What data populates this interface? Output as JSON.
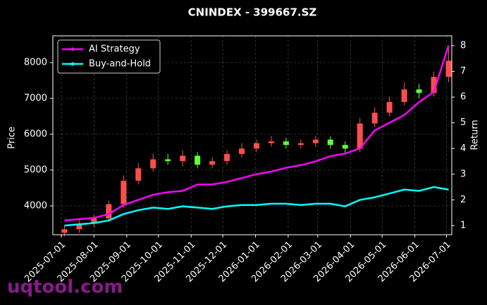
{
  "chart_data": {
    "type": "candlestick",
    "title": "CNINDEX - 399667.SZ",
    "ylabel": "Price",
    "y2label": "Return",
    "watermark": "uqtool.com",
    "x": [
      "2025-07-04",
      "2025-07-18",
      "2025-08-01",
      "2025-08-15",
      "2025-08-29",
      "2025-09-12",
      "2025-09-26",
      "2025-10-10",
      "2025-10-24",
      "2025-11-07",
      "2025-11-21",
      "2025-12-05",
      "2025-12-19",
      "2026-01-02",
      "2026-01-16",
      "2026-01-30",
      "2026-02-13",
      "2026-02-27",
      "2026-03-13",
      "2026-03-27",
      "2026-04-10",
      "2026-04-24",
      "2026-05-08",
      "2026-05-22",
      "2026-06-05",
      "2026-06-19",
      "2026-07-03"
    ],
    "ohlc": {
      "open": [
        3250,
        3350,
        3500,
        3650,
        4050,
        4700,
        5050,
        5300,
        5250,
        5400,
        5150,
        5250,
        5450,
        5600,
        5750,
        5800,
        5700,
        5750,
        5850,
        5700,
        5600,
        6300,
        6600,
        6900,
        7250,
        7150,
        7600
      ],
      "high": [
        3450,
        3600,
        3750,
        4150,
        4850,
        5200,
        5450,
        5450,
        5550,
        5500,
        5350,
        5550,
        5750,
        5850,
        5950,
        5900,
        5850,
        5950,
        5950,
        5800,
        6450,
        6750,
        7050,
        7450,
        7400,
        7750,
        8400
      ],
      "low": [
        3150,
        3250,
        3400,
        3550,
        3950,
        4600,
        4950,
        5150,
        5100,
        5050,
        5050,
        5150,
        5350,
        5500,
        5650,
        5600,
        5600,
        5650,
        5600,
        5450,
        5500,
        6200,
        6500,
        6800,
        7000,
        7050,
        7450
      ],
      "close": [
        3350,
        3500,
        3650,
        4050,
        4700,
        5050,
        5300,
        5250,
        5400,
        5150,
        5250,
        5450,
        5600,
        5750,
        5800,
        5700,
        5750,
        5850,
        5700,
        5600,
        6300,
        6600,
        6900,
        7250,
        7150,
        7600,
        8050
      ]
    },
    "up_color": "#ff4d4d",
    "down_color": "#66ff33",
    "series": [
      {
        "name": "AI Strategy",
        "color": "#ff00ff",
        "axis": "y2",
        "values": [
          1.2,
          1.25,
          1.3,
          1.45,
          1.8,
          2.0,
          2.2,
          2.3,
          2.35,
          2.6,
          2.6,
          2.7,
          2.85,
          3.0,
          3.1,
          3.25,
          3.35,
          3.5,
          3.7,
          3.8,
          4.0,
          4.7,
          5.0,
          5.3,
          5.8,
          6.2,
          8.0
        ]
      },
      {
        "name": "Buy-and-Hold",
        "color": "#00ffff",
        "axis": "y2",
        "values": [
          1.0,
          1.05,
          1.1,
          1.2,
          1.45,
          1.6,
          1.7,
          1.65,
          1.75,
          1.7,
          1.65,
          1.75,
          1.8,
          1.8,
          1.85,
          1.85,
          1.8,
          1.85,
          1.85,
          1.75,
          2.0,
          2.1,
          2.25,
          2.4,
          2.35,
          2.5,
          2.4
        ]
      }
    ],
    "xlim": [
      "2025-06-23",
      "2026-07-06"
    ],
    "xticks": [
      "2025-07-01",
      "2025-08-01",
      "2025-09-01",
      "2025-10-01",
      "2025-11-01",
      "2025-12-01",
      "2026-01-01",
      "2026-02-01",
      "2026-03-01",
      "2026-04-01",
      "2026-05-01",
      "2026-06-01",
      "2026-07-01"
    ],
    "ylim": [
      3196,
      8745
    ],
    "yticks": [
      4000,
      5000,
      6000,
      7000,
      8000
    ],
    "y2lim": [
      0.645,
      8.38
    ],
    "y2ticks": [
      1,
      2,
      3,
      4,
      5,
      6,
      7,
      8
    ],
    "grid": true,
    "legend": "upper left"
  }
}
